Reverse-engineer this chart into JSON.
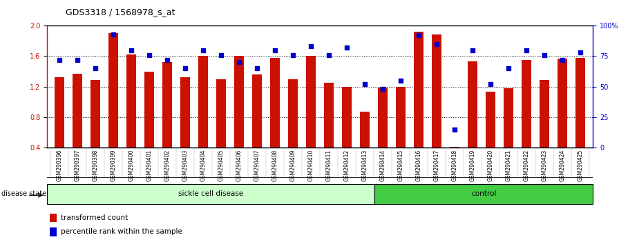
{
  "title": "GDS3318 / 1568978_s_at",
  "samples": [
    "GSM290396",
    "GSM290397",
    "GSM290398",
    "GSM290399",
    "GSM290400",
    "GSM290401",
    "GSM290402",
    "GSM290403",
    "GSM290404",
    "GSM290405",
    "GSM290406",
    "GSM290407",
    "GSM290408",
    "GSM290409",
    "GSM290410",
    "GSM290411",
    "GSM290412",
    "GSM290413",
    "GSM290414",
    "GSM290415",
    "GSM290416",
    "GSM290417",
    "GSM290418",
    "GSM290419",
    "GSM290420",
    "GSM290421",
    "GSM290422",
    "GSM290423",
    "GSM290424",
    "GSM290425"
  ],
  "bar_values": [
    1.32,
    1.37,
    1.29,
    1.9,
    1.62,
    1.4,
    1.52,
    1.32,
    1.6,
    1.3,
    1.6,
    1.36,
    1.58,
    1.3,
    1.6,
    1.25,
    1.2,
    0.87,
    1.19,
    1.2,
    1.92,
    1.88,
    0.41,
    1.53,
    1.13,
    1.18,
    1.55,
    1.29,
    1.57,
    1.58
  ],
  "dot_values_pct": [
    72,
    72,
    65,
    93,
    80,
    76,
    72,
    65,
    80,
    76,
    70,
    65,
    80,
    76,
    83,
    76,
    82,
    52,
    48,
    55,
    92,
    85,
    15,
    80,
    52,
    65,
    80,
    76,
    72,
    78
  ],
  "sickle_count": 18,
  "control_count": 12,
  "bar_color": "#cc1100",
  "dot_color": "#0000cc",
  "sickle_color": "#ccffcc",
  "control_color": "#44cc44",
  "ylim_left": [
    0.4,
    2.0
  ],
  "ylim_right": [
    0,
    100
  ],
  "yticks_left": [
    0.4,
    0.8,
    1.2,
    1.6,
    2.0
  ],
  "ytick_labels_right": [
    "0",
    "25",
    "50",
    "75",
    "100%"
  ],
  "ytick_vals_right": [
    0,
    25,
    50,
    75,
    100
  ],
  "legend_bar": "transformed count",
  "legend_dot": "percentile rank within the sample",
  "disease_state_label": "disease state",
  "sickle_label": "sickle cell disease",
  "control_label": "control",
  "xtick_bg": "#d4d4d4",
  "plot_bg": "#ffffff"
}
